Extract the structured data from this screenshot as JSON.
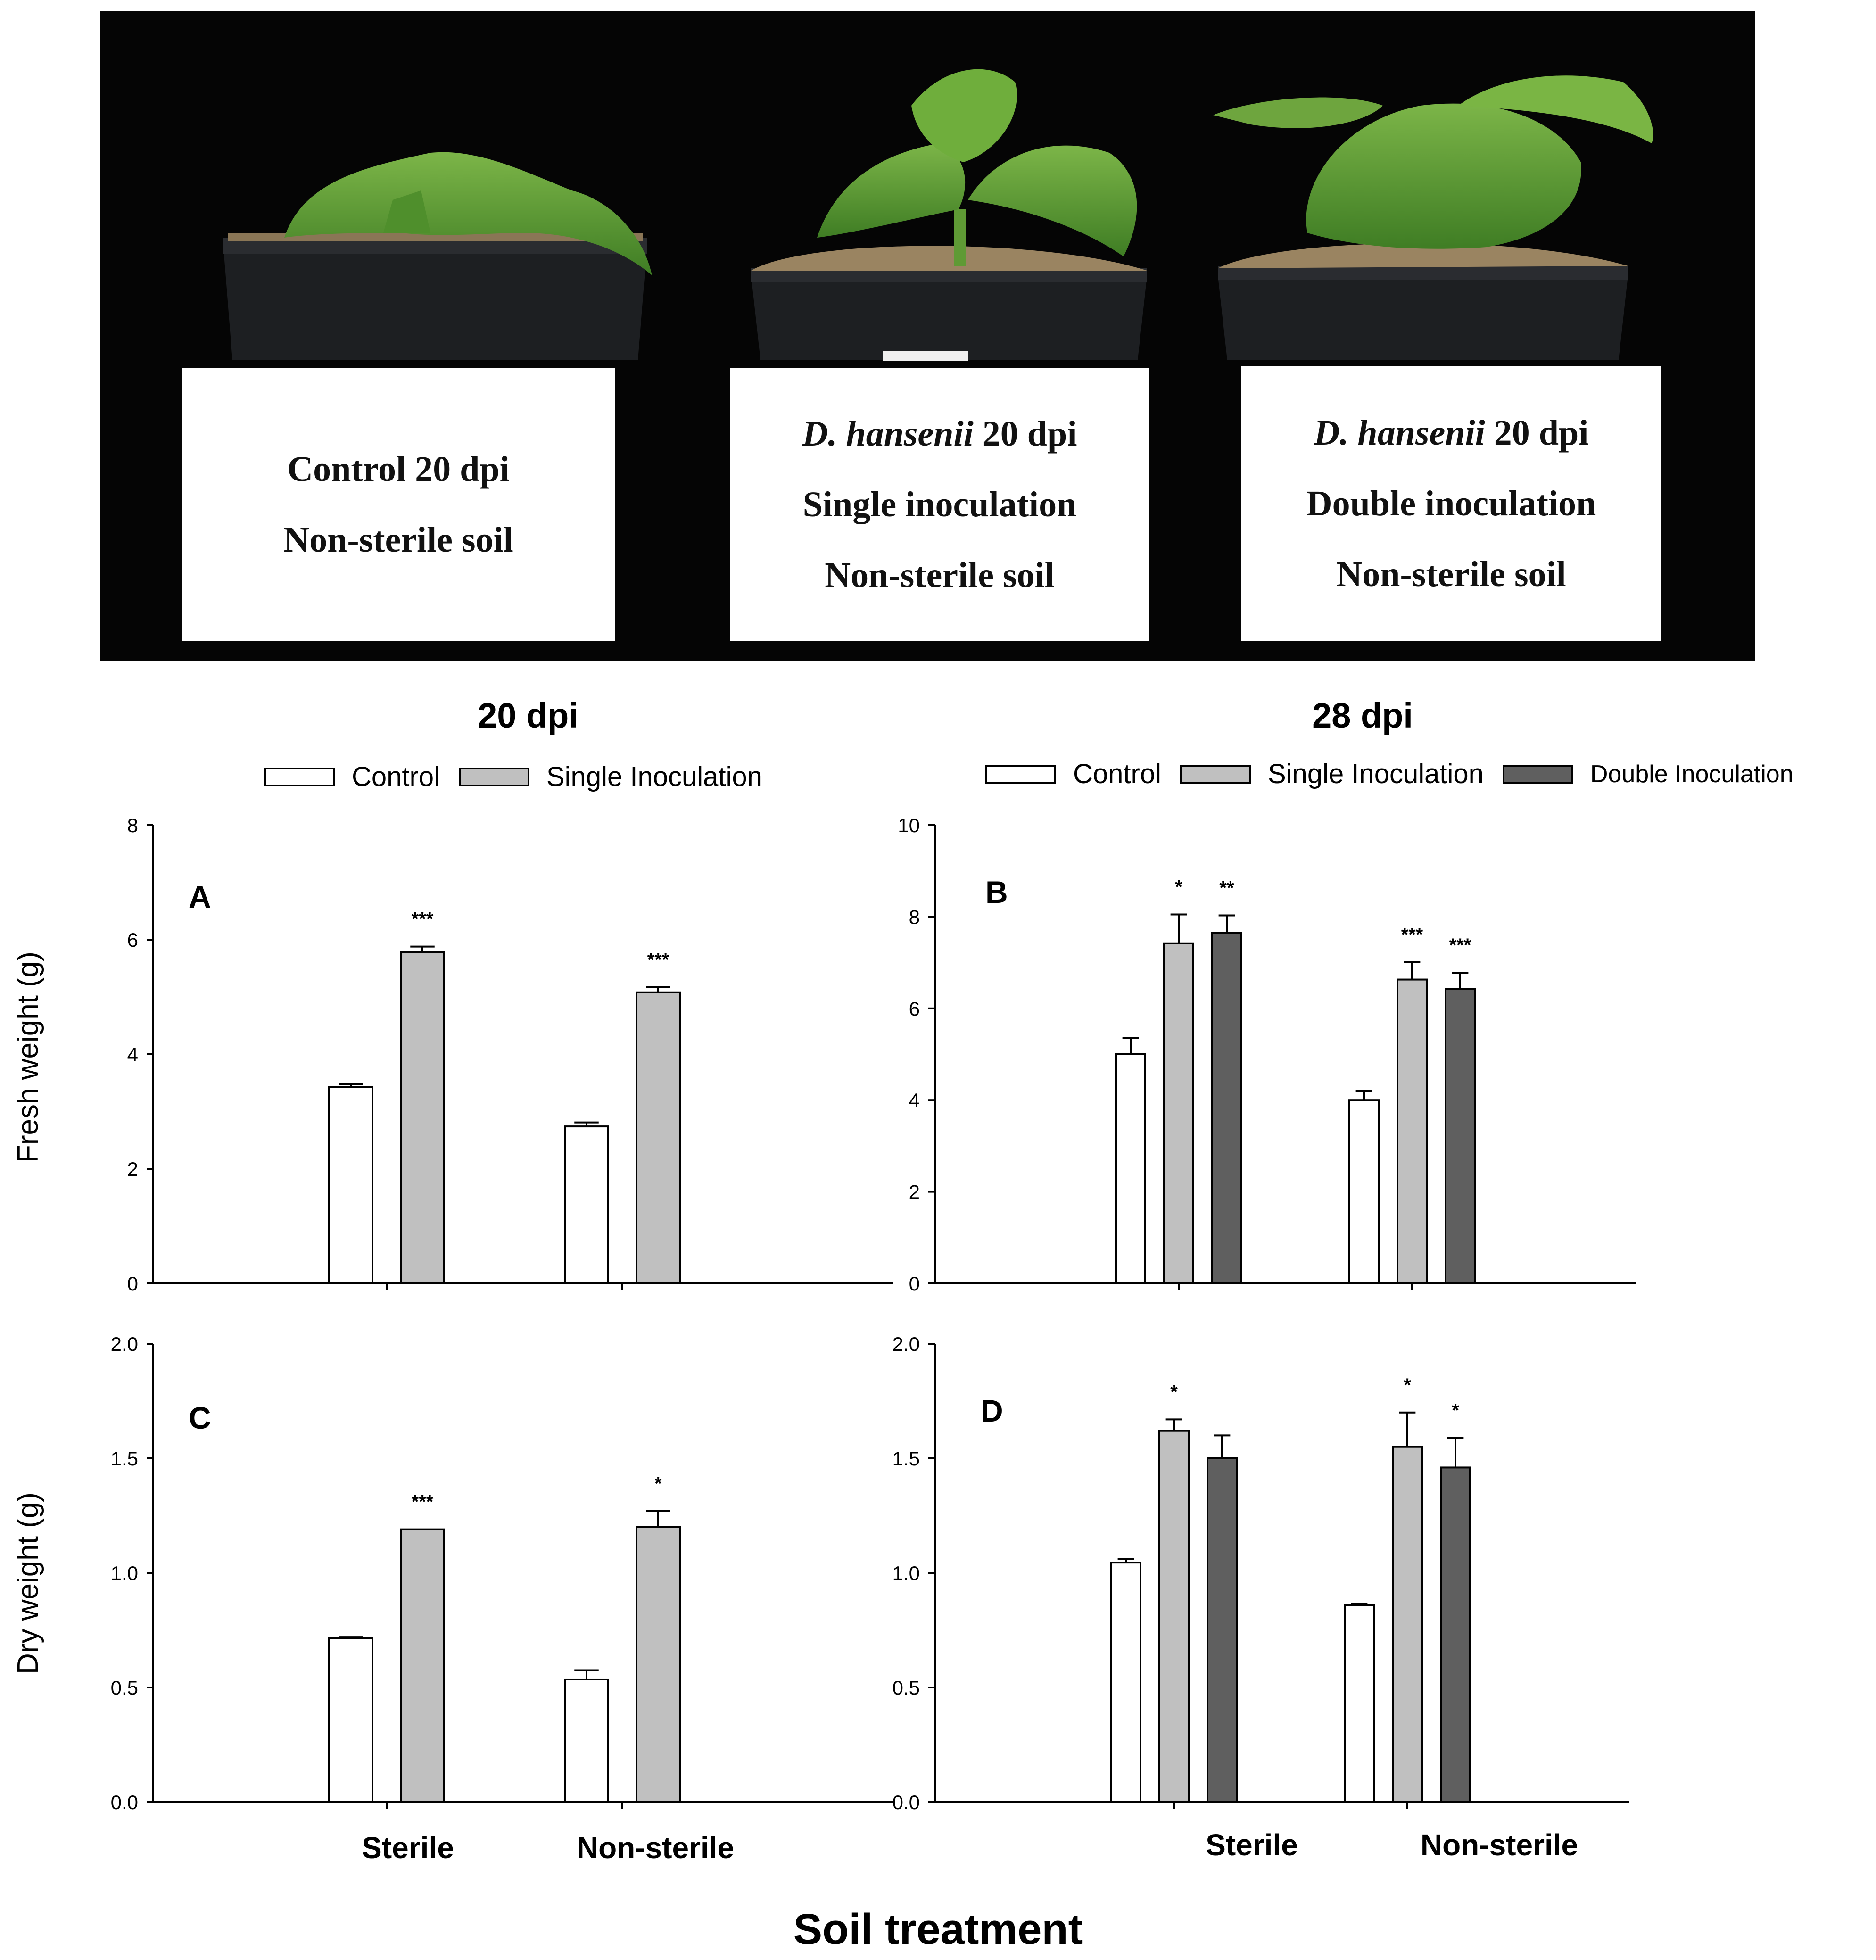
{
  "photo": {
    "labels": [
      {
        "line1_italic": "",
        "line1_rest": "Control 20 dpi",
        "line2": "Non-sterile soil",
        "line3": ""
      },
      {
        "line1_italic": "D. hansenii",
        "line1_rest": " 20 dpi",
        "line2": "Single inoculation",
        "line3": "Non-sterile soil"
      },
      {
        "line1_italic": "D. hansenii",
        "line1_rest": " 20 dpi",
        "line2": "Double inoculation",
        "line3": "Non-sterile soil"
      }
    ]
  },
  "section_titles": {
    "left": "20 dpi",
    "right": "28 dpi"
  },
  "legends": {
    "left": [
      "Control",
      "Single Inoculation"
    ],
    "right": [
      "Control",
      "Single Inoculation",
      "Double Inoculation"
    ]
  },
  "colors": {
    "control": "#ffffff",
    "single": "#c0c0c0",
    "double": "#5f5f5f",
    "axis": "#000000"
  },
  "axis_labels": {
    "fresh": "Fresh weight (g)",
    "dry": "Dry weight (g)",
    "x": "Soil treatment"
  },
  "categories": [
    "Sterile",
    "Non-sterile"
  ],
  "chart_data": [
    {
      "panel": "A",
      "type": "bar",
      "categories": [
        "Sterile",
        "Non-sterile"
      ],
      "ylabel": "Fresh weight (g)",
      "ylim": [
        0,
        8
      ],
      "yticks": [
        "0",
        "2",
        "4",
        "6",
        "8"
      ],
      "series": [
        {
          "name": "Control",
          "values": [
            3.43,
            2.74
          ],
          "errors": [
            0.05,
            0.07
          ],
          "stars": [
            "",
            ""
          ]
        },
        {
          "name": "Single Inoculation",
          "values": [
            5.78,
            5.08
          ],
          "errors": [
            0.1,
            0.09
          ],
          "stars": [
            "***",
            "***"
          ]
        }
      ]
    },
    {
      "panel": "B",
      "type": "bar",
      "categories": [
        "Sterile",
        "Non-sterile"
      ],
      "ylabel": "Fresh weight (g)",
      "ylim": [
        0,
        10
      ],
      "yticks": [
        "0",
        "2",
        "4",
        "6",
        "8",
        "10"
      ],
      "series": [
        {
          "name": "Control",
          "values": [
            5.0,
            4.0
          ],
          "errors": [
            0.35,
            0.2
          ],
          "stars": [
            "",
            ""
          ]
        },
        {
          "name": "Single Inoculation",
          "values": [
            7.42,
            6.63
          ],
          "errors": [
            0.63,
            0.38
          ],
          "stars": [
            "*",
            "***"
          ]
        },
        {
          "name": "Double Inoculation",
          "values": [
            7.65,
            6.43
          ],
          "errors": [
            0.38,
            0.35
          ],
          "stars": [
            "**",
            "***"
          ]
        }
      ]
    },
    {
      "panel": "C",
      "type": "bar",
      "categories": [
        "Sterile",
        "Non-sterile"
      ],
      "ylabel": "Dry weight (g)",
      "ylim": [
        0,
        2.0
      ],
      "yticks": [
        "0.0",
        "0.5",
        "1.0",
        "1.5",
        "2.0"
      ],
      "series": [
        {
          "name": "Control",
          "values": [
            0.715,
            0.535
          ],
          "errors": [
            0.005,
            0.04
          ],
          "stars": [
            "",
            ""
          ]
        },
        {
          "name": "Single Inoculation",
          "values": [
            1.19,
            1.2
          ],
          "errors": [
            0.0,
            0.07
          ],
          "stars": [
            "***",
            "*"
          ]
        }
      ]
    },
    {
      "panel": "D",
      "type": "bar",
      "categories": [
        "Sterile",
        "Non-sterile"
      ],
      "ylabel": "Dry weight (g)",
      "ylim": [
        0,
        2.0
      ],
      "yticks": [
        "0.0",
        "0.5",
        "1.0",
        "1.5",
        "2.0"
      ],
      "series": [
        {
          "name": "Control",
          "values": [
            1.045,
            0.86
          ],
          "errors": [
            0.015,
            0.005
          ],
          "stars": [
            "",
            ""
          ]
        },
        {
          "name": "Single Inoculation",
          "values": [
            1.62,
            1.55
          ],
          "errors": [
            0.05,
            0.15
          ],
          "stars": [
            "*",
            "*"
          ]
        },
        {
          "name": "Double Inoculation",
          "values": [
            1.5,
            1.46
          ],
          "errors": [
            0.1,
            0.13
          ],
          "stars": [
            "",
            "*"
          ]
        }
      ]
    }
  ]
}
